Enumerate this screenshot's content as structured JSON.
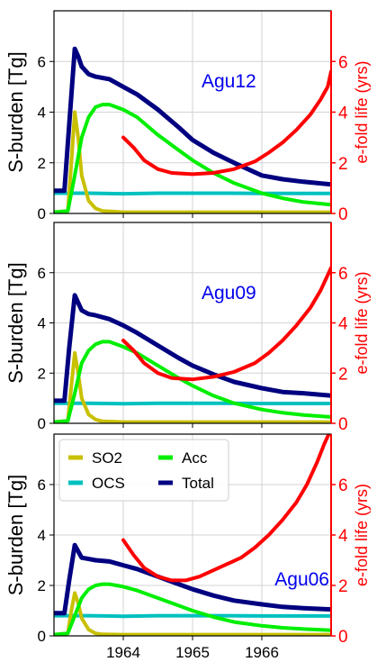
{
  "chart_data": [
    {
      "type": "line",
      "panel_label": "Agu12",
      "ylabel": "S-burden [Tg]",
      "ylabel_right": "e-fold life (yrs)",
      "xlim": [
        1963.0,
        1967.0
      ],
      "ylim": [
        0,
        8
      ],
      "ylim_right": [
        0,
        8
      ],
      "yticks": [
        0,
        2,
        4,
        6
      ],
      "yticks_right": [
        0,
        2,
        4,
        6
      ],
      "xticks": [
        1964,
        1965,
        1966
      ],
      "xtick_labels": [
        "",
        "",
        ""
      ],
      "grid": true,
      "legend": null,
      "series": [
        {
          "name": "SO2",
          "color": "#c8c000",
          "axis": "left",
          "x": [
            1963.0,
            1963.2,
            1963.25,
            1963.3,
            1963.35,
            1963.4,
            1963.5,
            1963.6,
            1963.7,
            1964.0,
            1965.0,
            1966.0,
            1967.0
          ],
          "y": [
            0.05,
            0.1,
            2.0,
            4.0,
            3.0,
            1.5,
            0.5,
            0.2,
            0.1,
            0.05,
            0.05,
            0.05,
            0.05
          ]
        },
        {
          "name": "OCS",
          "color": "#00c0c0",
          "axis": "left",
          "x": [
            1963.0,
            1963.5,
            1964.0,
            1964.5,
            1965.0,
            1965.5,
            1966.0,
            1966.5,
            1967.0
          ],
          "y": [
            0.8,
            0.8,
            0.78,
            0.8,
            0.8,
            0.8,
            0.79,
            0.79,
            0.79
          ]
        },
        {
          "name": "Acc",
          "color": "#00ee00",
          "axis": "left",
          "x": [
            1963.0,
            1963.2,
            1963.3,
            1963.4,
            1963.5,
            1963.6,
            1963.7,
            1963.8,
            1964.0,
            1964.2,
            1964.5,
            1964.8,
            1965.0,
            1965.3,
            1965.6,
            1966.0,
            1966.3,
            1966.6,
            1967.0
          ],
          "y": [
            0.05,
            0.1,
            1.5,
            3.0,
            3.8,
            4.2,
            4.3,
            4.3,
            4.1,
            3.8,
            3.1,
            2.5,
            2.1,
            1.6,
            1.2,
            0.8,
            0.6,
            0.45,
            0.35
          ]
        },
        {
          "name": "Total",
          "color": "#000080",
          "axis": "left",
          "x": [
            1963.0,
            1963.15,
            1963.22,
            1963.3,
            1963.35,
            1963.4,
            1963.5,
            1963.6,
            1963.8,
            1964.0,
            1964.2,
            1964.5,
            1964.8,
            1965.0,
            1965.3,
            1965.6,
            1966.0,
            1966.3,
            1966.6,
            1967.0
          ],
          "y": [
            0.9,
            0.9,
            3.5,
            6.5,
            6.2,
            5.8,
            5.5,
            5.4,
            5.3,
            5.0,
            4.7,
            4.1,
            3.4,
            2.9,
            2.4,
            2.0,
            1.5,
            1.35,
            1.25,
            1.15
          ]
        },
        {
          "name": "e-fold life",
          "color": "#ff0000",
          "axis": "right",
          "x": [
            1964.0,
            1964.15,
            1964.3,
            1964.5,
            1964.7,
            1965.0,
            1965.3,
            1965.6,
            1965.9,
            1966.1,
            1966.3,
            1966.5,
            1966.7,
            1966.85,
            1966.95,
            1967.0
          ],
          "y": [
            3.0,
            2.6,
            2.1,
            1.75,
            1.6,
            1.55,
            1.6,
            1.75,
            2.05,
            2.4,
            2.8,
            3.3,
            3.9,
            4.5,
            5.0,
            5.6
          ]
        }
      ]
    },
    {
      "type": "line",
      "panel_label": "Agu09",
      "ylabel": "S-burden [Tg]",
      "ylabel_right": "e-fold life (yrs)",
      "xlim": [
        1963.0,
        1967.0
      ],
      "ylim": [
        0,
        8
      ],
      "ylim_right": [
        0,
        8
      ],
      "yticks": [
        0,
        2,
        4,
        6
      ],
      "yticks_right": [
        0,
        2,
        4,
        6
      ],
      "xticks": [
        1964,
        1965,
        1966
      ],
      "xtick_labels": [
        "",
        "",
        ""
      ],
      "grid": true,
      "legend": null,
      "series": [
        {
          "name": "SO2",
          "color": "#c8c000",
          "axis": "left",
          "x": [
            1963.0,
            1963.2,
            1963.25,
            1963.3,
            1963.35,
            1963.4,
            1963.5,
            1963.6,
            1963.7,
            1964.0,
            1965.0,
            1966.0,
            1967.0
          ],
          "y": [
            0.05,
            0.1,
            1.5,
            2.8,
            2.0,
            1.0,
            0.35,
            0.15,
            0.08,
            0.05,
            0.05,
            0.05,
            0.05
          ]
        },
        {
          "name": "OCS",
          "color": "#00c0c0",
          "axis": "left",
          "x": [
            1963.0,
            1963.5,
            1964.0,
            1964.5,
            1965.0,
            1965.5,
            1966.0,
            1966.5,
            1967.0
          ],
          "y": [
            0.8,
            0.8,
            0.78,
            0.8,
            0.8,
            0.8,
            0.79,
            0.79,
            0.79
          ]
        },
        {
          "name": "Acc",
          "color": "#00ee00",
          "axis": "left",
          "x": [
            1963.0,
            1963.2,
            1963.3,
            1963.4,
            1963.5,
            1963.6,
            1963.7,
            1963.8,
            1964.0,
            1964.2,
            1964.5,
            1964.8,
            1965.0,
            1965.3,
            1965.6,
            1966.0,
            1966.3,
            1966.6,
            1967.0
          ],
          "y": [
            0.05,
            0.1,
            1.2,
            2.4,
            2.9,
            3.15,
            3.25,
            3.25,
            3.05,
            2.8,
            2.3,
            1.8,
            1.5,
            1.1,
            0.8,
            0.55,
            0.42,
            0.33,
            0.25
          ]
        },
        {
          "name": "Total",
          "color": "#000080",
          "axis": "left",
          "x": [
            1963.0,
            1963.15,
            1963.22,
            1963.3,
            1963.35,
            1963.4,
            1963.5,
            1963.6,
            1963.8,
            1964.0,
            1964.2,
            1964.5,
            1964.8,
            1965.0,
            1965.3,
            1965.6,
            1966.0,
            1966.3,
            1966.6,
            1967.0
          ],
          "y": [
            0.9,
            0.9,
            3.0,
            5.1,
            4.8,
            4.5,
            4.35,
            4.3,
            4.15,
            3.9,
            3.6,
            3.1,
            2.6,
            2.3,
            1.95,
            1.65,
            1.4,
            1.25,
            1.2,
            1.1
          ]
        },
        {
          "name": "e-fold life",
          "color": "#ff0000",
          "axis": "right",
          "x": [
            1964.0,
            1964.15,
            1964.3,
            1964.5,
            1964.7,
            1965.0,
            1965.3,
            1965.6,
            1965.9,
            1966.1,
            1966.3,
            1966.5,
            1966.7,
            1966.85,
            1966.95,
            1967.0
          ],
          "y": [
            3.3,
            2.9,
            2.4,
            2.0,
            1.8,
            1.75,
            1.85,
            2.05,
            2.4,
            2.8,
            3.3,
            3.9,
            4.6,
            5.3,
            5.9,
            6.2
          ]
        }
      ]
    },
    {
      "type": "line",
      "panel_label": "Agu06",
      "ylabel": "S-burden [Tg]",
      "ylabel_right": "e-fold life (yrs)",
      "xlim": [
        1963.0,
        1967.0
      ],
      "ylim": [
        0,
        8
      ],
      "ylim_right": [
        0,
        8
      ],
      "yticks": [
        0,
        2,
        4,
        6
      ],
      "yticks_right": [
        0,
        2,
        4,
        6
      ],
      "xticks": [
        1964,
        1965,
        1966
      ],
      "xtick_labels": [
        "1964",
        "1965",
        "1966"
      ],
      "grid": true,
      "legend": {
        "position": "top-left",
        "columns": 2,
        "entries": [
          "SO2",
          "OCS",
          "Acc",
          "Total"
        ]
      },
      "series": [
        {
          "name": "SO2",
          "color": "#c8c000",
          "axis": "left",
          "x": [
            1963.0,
            1963.2,
            1963.25,
            1963.3,
            1963.35,
            1963.4,
            1963.5,
            1963.6,
            1963.7,
            1964.0,
            1965.0,
            1966.0,
            1967.0
          ],
          "y": [
            0.05,
            0.1,
            1.0,
            1.7,
            1.3,
            0.7,
            0.25,
            0.1,
            0.06,
            0.05,
            0.05,
            0.05,
            0.05
          ]
        },
        {
          "name": "OCS",
          "color": "#00c0c0",
          "axis": "left",
          "x": [
            1963.0,
            1963.5,
            1964.0,
            1964.5,
            1965.0,
            1965.5,
            1966.0,
            1966.5,
            1967.0
          ],
          "y": [
            0.8,
            0.8,
            0.78,
            0.8,
            0.8,
            0.8,
            0.79,
            0.79,
            0.79
          ]
        },
        {
          "name": "Acc",
          "color": "#00ee00",
          "axis": "left",
          "x": [
            1963.0,
            1963.2,
            1963.3,
            1963.4,
            1963.5,
            1963.6,
            1963.7,
            1963.8,
            1964.0,
            1964.2,
            1964.5,
            1964.8,
            1965.0,
            1965.3,
            1965.6,
            1966.0,
            1966.3,
            1966.6,
            1967.0
          ],
          "y": [
            0.05,
            0.1,
            0.8,
            1.5,
            1.85,
            2.0,
            2.05,
            2.05,
            1.95,
            1.8,
            1.5,
            1.2,
            1.0,
            0.75,
            0.55,
            0.4,
            0.32,
            0.27,
            0.22
          ]
        },
        {
          "name": "Total",
          "color": "#000080",
          "axis": "left",
          "x": [
            1963.0,
            1963.15,
            1963.22,
            1963.3,
            1963.35,
            1963.4,
            1963.5,
            1963.6,
            1963.8,
            1964.0,
            1964.2,
            1964.5,
            1964.8,
            1965.0,
            1965.3,
            1965.6,
            1966.0,
            1966.3,
            1966.6,
            1967.0
          ],
          "y": [
            0.9,
            0.9,
            2.2,
            3.6,
            3.35,
            3.1,
            3.05,
            3.0,
            2.95,
            2.8,
            2.65,
            2.35,
            2.05,
            1.85,
            1.6,
            1.4,
            1.25,
            1.15,
            1.1,
            1.05
          ]
        },
        {
          "name": "e-fold life",
          "color": "#ff0000",
          "axis": "right",
          "x": [
            1964.0,
            1964.15,
            1964.3,
            1964.5,
            1964.7,
            1964.9,
            1965.1,
            1965.3,
            1965.5,
            1965.7,
            1965.9,
            1966.1,
            1966.3,
            1966.5,
            1966.65,
            1966.8,
            1966.9,
            1967.0
          ],
          "y": [
            3.8,
            3.2,
            2.7,
            2.35,
            2.2,
            2.2,
            2.35,
            2.6,
            2.85,
            3.1,
            3.5,
            4.0,
            4.6,
            5.3,
            6.0,
            6.9,
            7.6,
            8.2
          ]
        }
      ]
    }
  ]
}
